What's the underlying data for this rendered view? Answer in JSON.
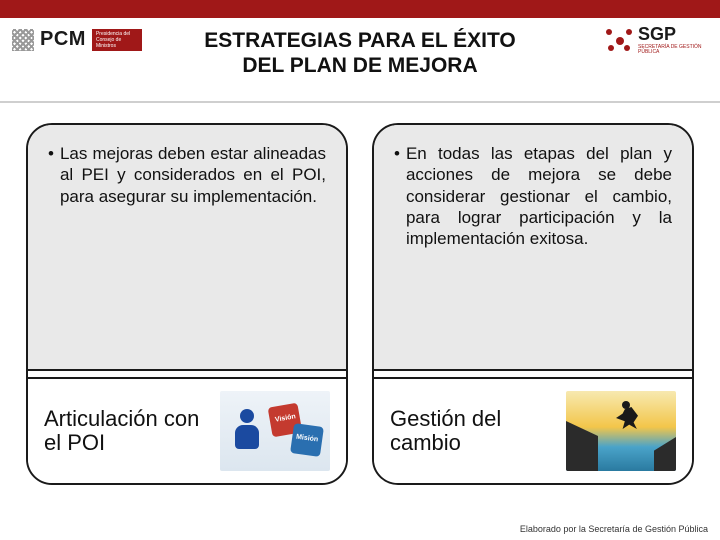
{
  "colors": {
    "brand_red": "#a01818",
    "text": "#111111",
    "card_bg": "#e9e9e9",
    "border": "#1a1a1a",
    "divider": "#cfcfcf"
  },
  "header": {
    "pcm_text": "PCM",
    "pcm_sub": "Presidencia del Consejo de Ministros",
    "sgp_text": "SGP",
    "sgp_sub": "SECRETARÍA DE GESTIÓN PÚBLICA"
  },
  "title_line1": "ESTRATEGIAS PARA EL ÉXITO",
  "title_line2": "DEL PLAN DE MEJORA",
  "cards": [
    {
      "bullet": "Las mejoras deben estar alineadas al PEI y considerados en el POI, para asegurar su implementación.",
      "heading": "Articulación con el POI",
      "image_desc": "Figura 3D azul con piezas de rompecabezas Visión y Misión",
      "piece1": "Visión",
      "piece2": "Misión"
    },
    {
      "bullet": "En todas las etapas del plan y acciones de mejora se debe considerar gestionar el cambio, para lograr participación y la implementación exitosa.",
      "heading": "Gestión del cambio",
      "image_desc": "Silueta de persona saltando entre acantilados al atardecer"
    }
  ],
  "footer": "Elaborado por la Secretaría de Gestión Pública"
}
